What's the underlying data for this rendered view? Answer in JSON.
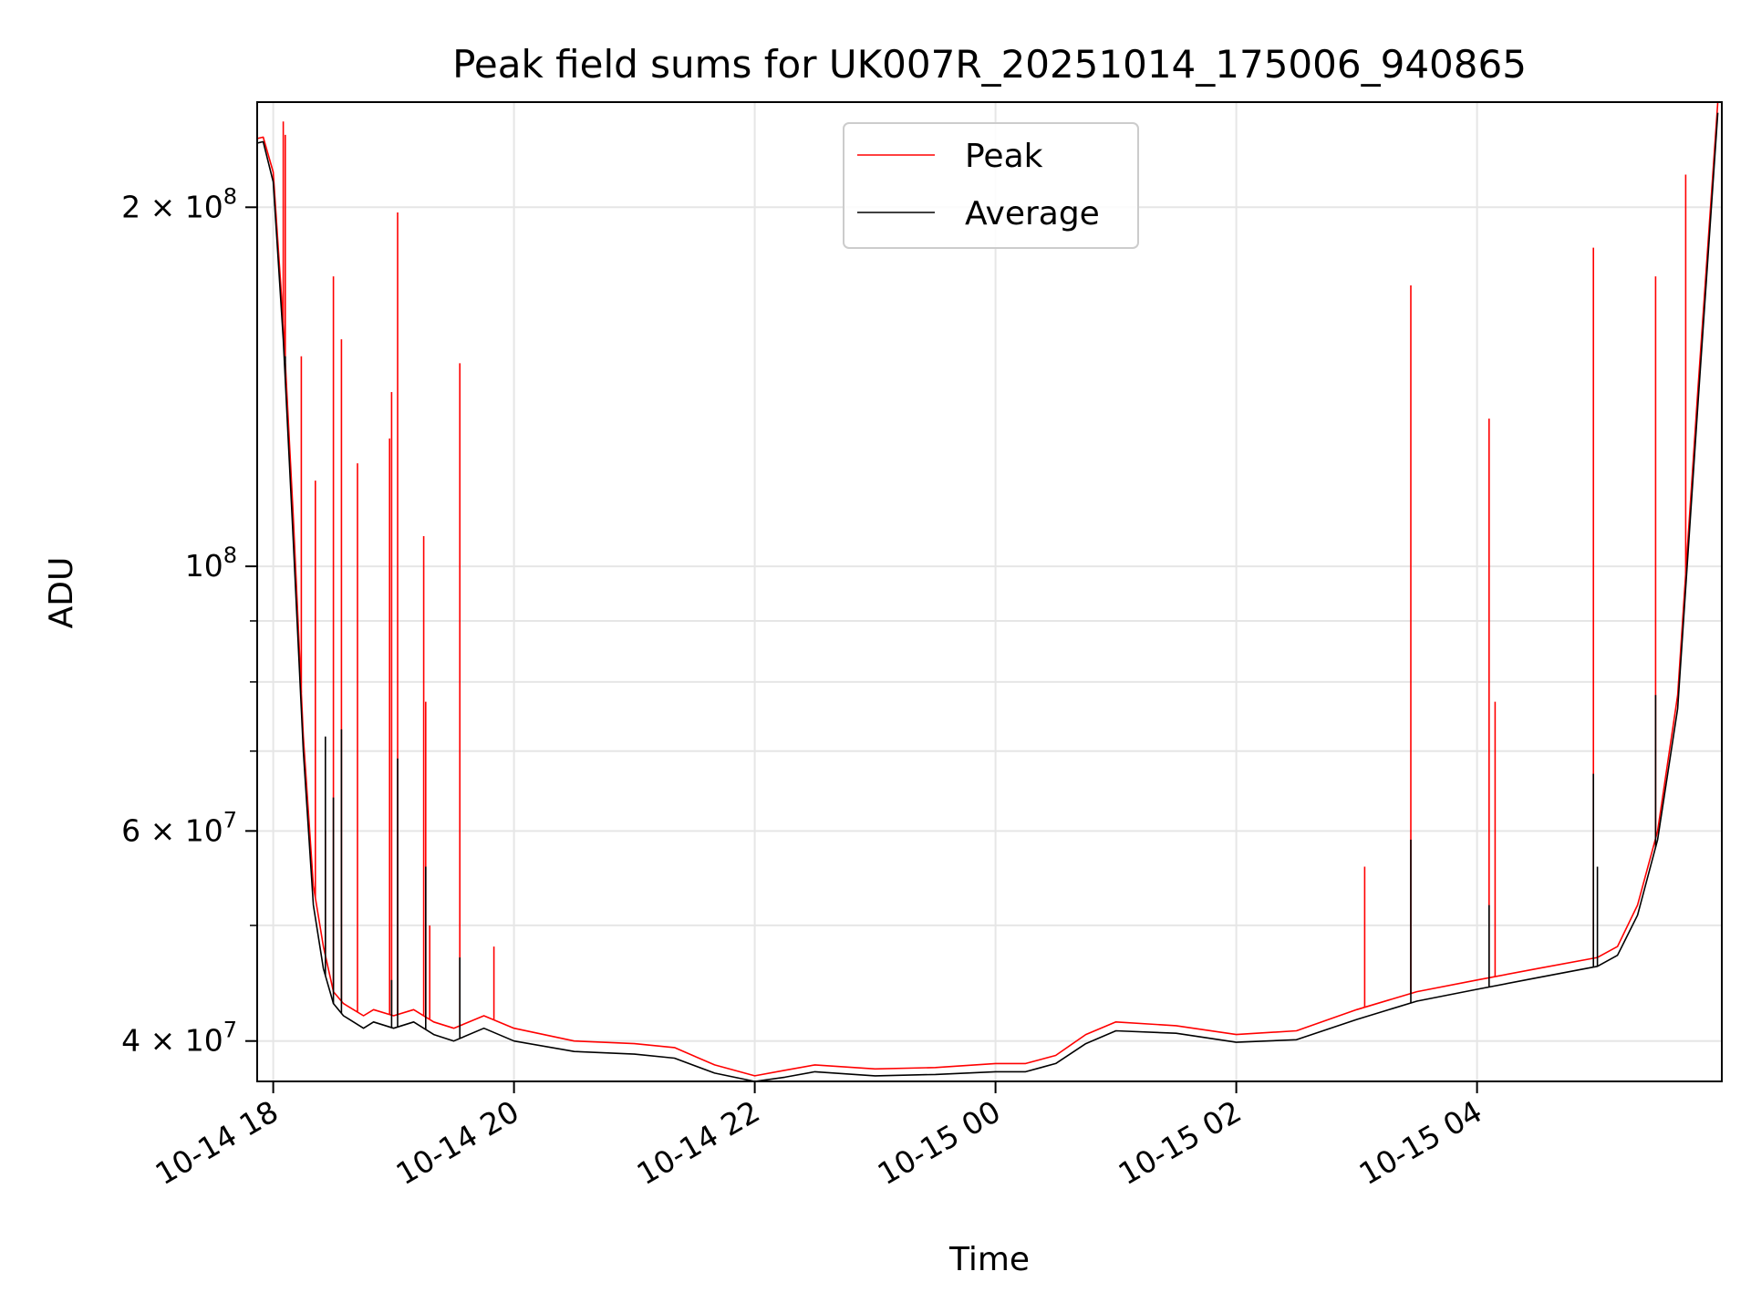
{
  "chart_data": {
    "type": "line",
    "title": "Peak field sums for UK007R_20251014_175006_940865",
    "xlabel": "Time",
    "ylabel": "ADU",
    "yscale": "log",
    "ylim": [
      37000000,
      245000000
    ],
    "xlim": [
      "2025-10-14 17:52",
      "2025-10-15 06:02"
    ],
    "grid": true,
    "legend_position": "top-center",
    "x_ticks": [
      "2025-10-14 18:00",
      "2025-10-14 20:00",
      "2025-10-14 22:00",
      "2025-10-15 00:00",
      "2025-10-15 02:00",
      "2025-10-15 04:00"
    ],
    "x_tick_labels": [
      "10-14 18",
      "10-14 20",
      "10-14 22",
      "10-15 00",
      "10-15 02",
      "10-15 04"
    ],
    "y_ticks": [
      {
        "value": 40000000,
        "mantissa": "4",
        "base": "10",
        "exp": "7"
      },
      {
        "value": 60000000,
        "mantissa": "6",
        "base": "10",
        "exp": "7"
      },
      {
        "value": 100000000,
        "mantissa": "",
        "base": "10",
        "exp": "8"
      },
      {
        "value": 200000000,
        "mantissa": "2",
        "base": "10",
        "exp": "8"
      }
    ],
    "y_minor_ticks": [
      50000000,
      70000000,
      80000000,
      90000000
    ],
    "series": [
      {
        "name": "Peak",
        "color": "#ff0000",
        "x": [
          "2025-10-14 17:50",
          "2025-10-14 17:55",
          "2025-10-14 18:00",
          "2025-10-14 18:05",
          "2025-10-14 18:10",
          "2025-10-14 18:15",
          "2025-10-14 18:20",
          "2025-10-14 18:25",
          "2025-10-14 18:30",
          "2025-10-14 18:35",
          "2025-10-14 18:40",
          "2025-10-14 18:45",
          "2025-10-14 18:50",
          "2025-10-14 19:00",
          "2025-10-14 19:10",
          "2025-10-14 19:20",
          "2025-10-14 19:30",
          "2025-10-14 19:45",
          "2025-10-14 20:00",
          "2025-10-14 20:30",
          "2025-10-14 21:00",
          "2025-10-14 21:20",
          "2025-10-14 21:40",
          "2025-10-14 22:00",
          "2025-10-14 22:15",
          "2025-10-14 22:30",
          "2025-10-14 23:00",
          "2025-10-14 23:30",
          "2025-10-15 00:00",
          "2025-10-15 00:15",
          "2025-10-15 00:30",
          "2025-10-15 00:45",
          "2025-10-15 01:00",
          "2025-10-15 01:30",
          "2025-10-15 02:00",
          "2025-10-15 02:30",
          "2025-10-15 03:00",
          "2025-10-15 03:30",
          "2025-10-15 04:00",
          "2025-10-15 04:30",
          "2025-10-15 05:00",
          "2025-10-15 05:10",
          "2025-10-15 05:20",
          "2025-10-15 05:30",
          "2025-10-15 05:40",
          "2025-10-15 05:50",
          "2025-10-15 06:00"
        ],
        "values": [
          228000000,
          229000000,
          214000000,
          160000000,
          110000000,
          72000000,
          54000000,
          48000000,
          44000000,
          43000000,
          42500000,
          42000000,
          42500000,
          42000000,
          42500000,
          41500000,
          41000000,
          42000000,
          41000000,
          40000000,
          39800000,
          39500000,
          38200000,
          37400000,
          37800000,
          38200000,
          37900000,
          38000000,
          38300000,
          38300000,
          38900000,
          40500000,
          41500000,
          41200000,
          40500000,
          40800000,
          42500000,
          44000000,
          45000000,
          46000000,
          47000000,
          48000000,
          52000000,
          60000000,
          78000000,
          140000000,
          245000000
        ],
        "spikes": [
          {
            "x": "2025-10-14 18:05",
            "y": 236000000
          },
          {
            "x": "2025-10-14 18:06",
            "y": 230000000
          },
          {
            "x": "2025-10-14 18:14",
            "y": 150000000
          },
          {
            "x": "2025-10-14 18:21",
            "y": 118000000
          },
          {
            "x": "2025-10-14 18:26",
            "y": 60000000
          },
          {
            "x": "2025-10-14 18:30",
            "y": 175000000
          },
          {
            "x": "2025-10-14 18:34",
            "y": 155000000
          },
          {
            "x": "2025-10-14 18:42",
            "y": 122000000
          },
          {
            "x": "2025-10-14 18:58",
            "y": 128000000
          },
          {
            "x": "2025-10-14 18:59",
            "y": 140000000
          },
          {
            "x": "2025-10-14 19:02",
            "y": 198000000
          },
          {
            "x": "2025-10-14 19:15",
            "y": 106000000
          },
          {
            "x": "2025-10-14 19:16",
            "y": 77000000
          },
          {
            "x": "2025-10-14 19:18",
            "y": 50000000
          },
          {
            "x": "2025-10-14 19:33",
            "y": 148000000
          },
          {
            "x": "2025-10-14 19:50",
            "y": 48000000
          },
          {
            "x": "2025-10-15 03:04",
            "y": 56000000
          },
          {
            "x": "2025-10-15 03:27",
            "y": 172000000
          },
          {
            "x": "2025-10-15 04:06",
            "y": 133000000
          },
          {
            "x": "2025-10-15 04:09",
            "y": 77000000
          },
          {
            "x": "2025-10-15 04:58",
            "y": 185000000
          },
          {
            "x": "2025-10-15 05:29",
            "y": 175000000
          },
          {
            "x": "2025-10-15 05:44",
            "y": 213000000
          }
        ]
      },
      {
        "name": "Average",
        "color": "#000000",
        "x": [
          "2025-10-14 17:50",
          "2025-10-14 17:55",
          "2025-10-14 18:00",
          "2025-10-14 18:05",
          "2025-10-14 18:10",
          "2025-10-14 18:15",
          "2025-10-14 18:20",
          "2025-10-14 18:25",
          "2025-10-14 18:30",
          "2025-10-14 18:35",
          "2025-10-14 18:40",
          "2025-10-14 18:45",
          "2025-10-14 18:50",
          "2025-10-14 19:00",
          "2025-10-14 19:10",
          "2025-10-14 19:20",
          "2025-10-14 19:30",
          "2025-10-14 19:45",
          "2025-10-14 20:00",
          "2025-10-14 20:30",
          "2025-10-14 21:00",
          "2025-10-14 21:20",
          "2025-10-14 21:40",
          "2025-10-14 22:00",
          "2025-10-14 22:15",
          "2025-10-14 22:30",
          "2025-10-14 23:00",
          "2025-10-14 23:30",
          "2025-10-15 00:00",
          "2025-10-15 00:15",
          "2025-10-15 00:30",
          "2025-10-15 00:45",
          "2025-10-15 01:00",
          "2025-10-15 01:30",
          "2025-10-15 02:00",
          "2025-10-15 02:30",
          "2025-10-15 03:00",
          "2025-10-15 03:30",
          "2025-10-15 04:00",
          "2025-10-15 04:30",
          "2025-10-15 05:00",
          "2025-10-15 05:10",
          "2025-10-15 05:20",
          "2025-10-15 05:30",
          "2025-10-15 05:40",
          "2025-10-15 05:50",
          "2025-10-15 06:00"
        ],
        "values": [
          226000000,
          227000000,
          210000000,
          155000000,
          105000000,
          70000000,
          52000000,
          46000000,
          43000000,
          42000000,
          41500000,
          41000000,
          41500000,
          41000000,
          41500000,
          40500000,
          40000000,
          41000000,
          40000000,
          39200000,
          39000000,
          38700000,
          37600000,
          37000000,
          37300000,
          37700000,
          37400000,
          37500000,
          37700000,
          37700000,
          38300000,
          39800000,
          40800000,
          40600000,
          39900000,
          40100000,
          41700000,
          43200000,
          44200000,
          45200000,
          46200000,
          47200000,
          51000000,
          59000000,
          76000000,
          136000000,
          240000000
        ],
        "spikes": [
          {
            "x": "2025-10-14 18:06",
            "y": 150000000
          },
          {
            "x": "2025-10-14 18:26",
            "y": 72000000
          },
          {
            "x": "2025-10-14 18:30",
            "y": 64000000
          },
          {
            "x": "2025-10-14 18:34",
            "y": 73000000
          },
          {
            "x": "2025-10-14 18:59",
            "y": 45000000
          },
          {
            "x": "2025-10-14 19:02",
            "y": 69000000
          },
          {
            "x": "2025-10-14 19:16",
            "y": 56000000
          },
          {
            "x": "2025-10-14 19:33",
            "y": 47000000
          },
          {
            "x": "2025-10-15 03:27",
            "y": 59000000
          },
          {
            "x": "2025-10-15 04:06",
            "y": 52000000
          },
          {
            "x": "2025-10-15 04:58",
            "y": 67000000
          },
          {
            "x": "2025-10-15 05:00",
            "y": 56000000
          },
          {
            "x": "2025-10-15 05:29",
            "y": 78000000
          }
        ]
      }
    ]
  }
}
